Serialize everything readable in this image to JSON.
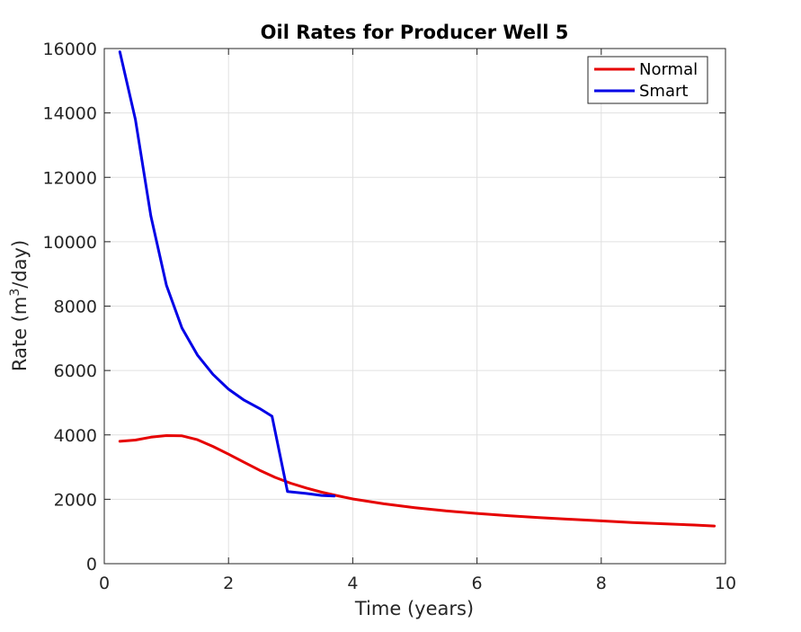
{
  "chart_data": {
    "type": "line",
    "title": "Oil Rates for Producer Well 5",
    "xlabel": "Time (years)",
    "ylabel_main": "Rate (m",
    "ylabel_sup": "3",
    "ylabel_tail": "/day)",
    "xlim": [
      0,
      10
    ],
    "ylim": [
      0,
      16000
    ],
    "xticks": [
      0,
      2,
      4,
      6,
      8,
      10
    ],
    "yticks": [
      0,
      2000,
      4000,
      6000,
      8000,
      10000,
      12000,
      14000,
      16000
    ],
    "grid": true,
    "legend_position": "top-right",
    "series": [
      {
        "name": "Normal",
        "color": "#e60000",
        "x": [
          0.25,
          0.5,
          0.75,
          1.0,
          1.25,
          1.5,
          1.75,
          2.0,
          2.25,
          2.5,
          2.75,
          3.0,
          3.25,
          3.5,
          3.75,
          4.0,
          4.5,
          5.0,
          5.5,
          6.0,
          6.5,
          7.0,
          7.5,
          8.0,
          8.5,
          9.0,
          9.5,
          9.82
        ],
        "y": [
          3800,
          3840,
          3930,
          3980,
          3970,
          3850,
          3640,
          3400,
          3150,
          2900,
          2680,
          2500,
          2350,
          2220,
          2110,
          2010,
          1860,
          1740,
          1640,
          1560,
          1490,
          1430,
          1380,
          1330,
          1280,
          1240,
          1200,
          1170
        ]
      },
      {
        "name": "Smart",
        "color": "#0000e6",
        "x": [
          0.25,
          0.5,
          0.75,
          1.0,
          1.25,
          1.5,
          1.75,
          2.0,
          2.25,
          2.5,
          2.7,
          2.95,
          3.25,
          3.5,
          3.7
        ],
        "y": [
          15900,
          13800,
          10800,
          8650,
          7320,
          6480,
          5880,
          5420,
          5080,
          4820,
          4580,
          2240,
          2180,
          2120,
          2100
        ]
      }
    ]
  }
}
